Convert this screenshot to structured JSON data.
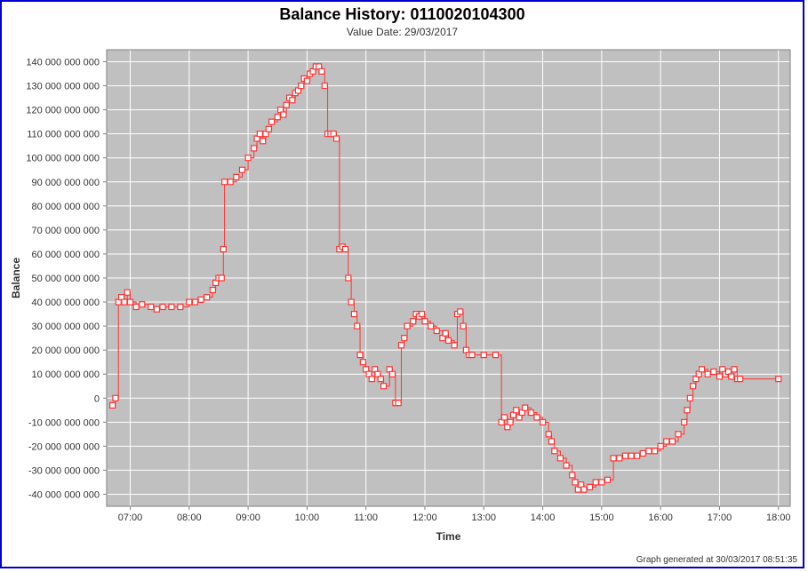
{
  "title": "Balance History: 0110020104300",
  "subtitle": "Value Date: 29/03/2017",
  "footer": "Graph generated at 30/03/2017 08:51:35",
  "chart": {
    "type": "step-line",
    "xlabel": "Time",
    "ylabel": "Balance",
    "outer_bg": "#ffffff",
    "border_color": "#0000cc",
    "plot_bg": "#c0c0c0",
    "grid_color": "#ffffff",
    "axis_color": "#808080",
    "tick_color": "#808080",
    "series_color": "#ff3333",
    "marker_fill": "#ffffff",
    "marker_stroke": "#ff3333",
    "marker_size": 6,
    "line_width": 1.0,
    "tick_font_size": 11,
    "axis_label_font_size": 12,
    "x_ticks": [
      {
        "v": 7,
        "label": "07:00"
      },
      {
        "v": 8,
        "label": "08:00"
      },
      {
        "v": 9,
        "label": "09:00"
      },
      {
        "v": 10,
        "label": "10:00"
      },
      {
        "v": 11,
        "label": "11:00"
      },
      {
        "v": 12,
        "label": "12:00"
      },
      {
        "v": 13,
        "label": "13:00"
      },
      {
        "v": 14,
        "label": "14:00"
      },
      {
        "v": 15,
        "label": "15:00"
      },
      {
        "v": 16,
        "label": "16:00"
      },
      {
        "v": 17,
        "label": "17:00"
      },
      {
        "v": 18,
        "label": "18:00"
      }
    ],
    "y_ticks": [
      {
        "v": -40000000000,
        "label": "-40 000 000 000"
      },
      {
        "v": -30000000000,
        "label": "-30 000 000 000"
      },
      {
        "v": -20000000000,
        "label": "-20 000 000 000"
      },
      {
        "v": -10000000000,
        "label": "-10 000 000 000"
      },
      {
        "v": 0,
        "label": "0"
      },
      {
        "v": 10000000000,
        "label": "10 000 000 000"
      },
      {
        "v": 20000000000,
        "label": "20 000 000 000"
      },
      {
        "v": 30000000000,
        "label": "30 000 000 000"
      },
      {
        "v": 40000000000,
        "label": "40 000 000 000"
      },
      {
        "v": 50000000000,
        "label": "50 000 000 000"
      },
      {
        "v": 60000000000,
        "label": "60 000 000 000"
      },
      {
        "v": 70000000000,
        "label": "70 000 000 000"
      },
      {
        "v": 80000000000,
        "label": "80 000 000 000"
      },
      {
        "v": 90000000000,
        "label": "90 000 000 000"
      },
      {
        "v": 100000000000,
        "label": "100 000 000 000"
      },
      {
        "v": 110000000000,
        "label": "110 000 000 000"
      },
      {
        "v": 120000000000,
        "label": "120 000 000 000"
      },
      {
        "v": 130000000000,
        "label": "130 000 000 000"
      },
      {
        "v": 140000000000,
        "label": "140 000 000 000"
      }
    ],
    "xlim": [
      6.6,
      18.2
    ],
    "ylim": [
      -45000000000,
      145000000000
    ],
    "data": [
      {
        "t": 6.7,
        "v": -3000000000
      },
      {
        "t": 6.75,
        "v": 0
      },
      {
        "t": 6.8,
        "v": 40000000000
      },
      {
        "t": 6.85,
        "v": 42000000000
      },
      {
        "t": 6.9,
        "v": 40000000000
      },
      {
        "t": 6.95,
        "v": 44000000000
      },
      {
        "t": 7.0,
        "v": 40000000000
      },
      {
        "t": 7.1,
        "v": 38000000000
      },
      {
        "t": 7.2,
        "v": 39000000000
      },
      {
        "t": 7.35,
        "v": 38000000000
      },
      {
        "t": 7.45,
        "v": 37000000000
      },
      {
        "t": 7.55,
        "v": 38000000000
      },
      {
        "t": 7.7,
        "v": 38000000000
      },
      {
        "t": 7.85,
        "v": 38000000000
      },
      {
        "t": 8.0,
        "v": 40000000000
      },
      {
        "t": 8.1,
        "v": 40000000000
      },
      {
        "t": 8.2,
        "v": 41000000000
      },
      {
        "t": 8.3,
        "v": 42000000000
      },
      {
        "t": 8.4,
        "v": 45000000000
      },
      {
        "t": 8.45,
        "v": 48000000000
      },
      {
        "t": 8.5,
        "v": 50000000000
      },
      {
        "t": 8.55,
        "v": 50000000000
      },
      {
        "t": 8.58,
        "v": 62000000000
      },
      {
        "t": 8.6,
        "v": 90000000000
      },
      {
        "t": 8.7,
        "v": 90000000000
      },
      {
        "t": 8.8,
        "v": 92000000000
      },
      {
        "t": 8.9,
        "v": 95000000000
      },
      {
        "t": 9.0,
        "v": 100000000000
      },
      {
        "t": 9.1,
        "v": 104000000000
      },
      {
        "t": 9.15,
        "v": 108000000000
      },
      {
        "t": 9.2,
        "v": 110000000000
      },
      {
        "t": 9.25,
        "v": 107000000000
      },
      {
        "t": 9.3,
        "v": 110000000000
      },
      {
        "t": 9.35,
        "v": 112000000000
      },
      {
        "t": 9.4,
        "v": 115000000000
      },
      {
        "t": 9.5,
        "v": 117000000000
      },
      {
        "t": 9.55,
        "v": 120000000000
      },
      {
        "t": 9.6,
        "v": 118000000000
      },
      {
        "t": 9.65,
        "v": 122000000000
      },
      {
        "t": 9.7,
        "v": 125000000000
      },
      {
        "t": 9.75,
        "v": 124000000000
      },
      {
        "t": 9.8,
        "v": 127000000000
      },
      {
        "t": 9.85,
        "v": 128000000000
      },
      {
        "t": 9.9,
        "v": 130000000000
      },
      {
        "t": 9.95,
        "v": 133000000000
      },
      {
        "t": 10.0,
        "v": 132000000000
      },
      {
        "t": 10.05,
        "v": 135000000000
      },
      {
        "t": 10.1,
        "v": 136000000000
      },
      {
        "t": 10.15,
        "v": 138000000000
      },
      {
        "t": 10.2,
        "v": 138000000000
      },
      {
        "t": 10.25,
        "v": 136000000000
      },
      {
        "t": 10.3,
        "v": 130000000000
      },
      {
        "t": 10.35,
        "v": 110000000000
      },
      {
        "t": 10.4,
        "v": 110000000000
      },
      {
        "t": 10.45,
        "v": 110000000000
      },
      {
        "t": 10.5,
        "v": 108000000000
      },
      {
        "t": 10.55,
        "v": 62000000000
      },
      {
        "t": 10.6,
        "v": 63000000000
      },
      {
        "t": 10.65,
        "v": 62000000000
      },
      {
        "t": 10.7,
        "v": 50000000000
      },
      {
        "t": 10.75,
        "v": 40000000000
      },
      {
        "t": 10.8,
        "v": 35000000000
      },
      {
        "t": 10.85,
        "v": 30000000000
      },
      {
        "t": 10.9,
        "v": 18000000000
      },
      {
        "t": 10.95,
        "v": 15000000000
      },
      {
        "t": 11.0,
        "v": 12000000000
      },
      {
        "t": 11.05,
        "v": 10000000000
      },
      {
        "t": 11.1,
        "v": 8000000000
      },
      {
        "t": 11.15,
        "v": 12000000000
      },
      {
        "t": 11.2,
        "v": 10000000000
      },
      {
        "t": 11.25,
        "v": 8000000000
      },
      {
        "t": 11.3,
        "v": 5000000000
      },
      {
        "t": 11.4,
        "v": 12000000000
      },
      {
        "t": 11.45,
        "v": 10000000000
      },
      {
        "t": 11.5,
        "v": -2000000000
      },
      {
        "t": 11.55,
        "v": -2000000000
      },
      {
        "t": 11.6,
        "v": 22000000000
      },
      {
        "t": 11.65,
        "v": 25000000000
      },
      {
        "t": 11.7,
        "v": 30000000000
      },
      {
        "t": 11.8,
        "v": 32000000000
      },
      {
        "t": 11.85,
        "v": 35000000000
      },
      {
        "t": 11.9,
        "v": 34000000000
      },
      {
        "t": 11.95,
        "v": 35000000000
      },
      {
        "t": 12.0,
        "v": 32000000000
      },
      {
        "t": 12.1,
        "v": 30000000000
      },
      {
        "t": 12.2,
        "v": 28000000000
      },
      {
        "t": 12.3,
        "v": 25000000000
      },
      {
        "t": 12.35,
        "v": 27000000000
      },
      {
        "t": 12.4,
        "v": 24000000000
      },
      {
        "t": 12.5,
        "v": 22000000000
      },
      {
        "t": 12.55,
        "v": 35000000000
      },
      {
        "t": 12.6,
        "v": 36000000000
      },
      {
        "t": 12.65,
        "v": 30000000000
      },
      {
        "t": 12.7,
        "v": 20000000000
      },
      {
        "t": 12.75,
        "v": 18000000000
      },
      {
        "t": 12.8,
        "v": 18000000000
      },
      {
        "t": 13.0,
        "v": 18000000000
      },
      {
        "t": 13.2,
        "v": 18000000000
      },
      {
        "t": 13.3,
        "v": -10000000000
      },
      {
        "t": 13.35,
        "v": -8000000000
      },
      {
        "t": 13.4,
        "v": -12000000000
      },
      {
        "t": 13.45,
        "v": -10000000000
      },
      {
        "t": 13.5,
        "v": -7000000000
      },
      {
        "t": 13.55,
        "v": -5000000000
      },
      {
        "t": 13.6,
        "v": -8000000000
      },
      {
        "t": 13.65,
        "v": -6000000000
      },
      {
        "t": 13.7,
        "v": -4000000000
      },
      {
        "t": 13.8,
        "v": -6000000000
      },
      {
        "t": 13.9,
        "v": -8000000000
      },
      {
        "t": 14.0,
        "v": -10000000000
      },
      {
        "t": 14.1,
        "v": -15000000000
      },
      {
        "t": 14.15,
        "v": -18000000000
      },
      {
        "t": 14.2,
        "v": -22000000000
      },
      {
        "t": 14.3,
        "v": -25000000000
      },
      {
        "t": 14.4,
        "v": -28000000000
      },
      {
        "t": 14.5,
        "v": -32000000000
      },
      {
        "t": 14.55,
        "v": -35000000000
      },
      {
        "t": 14.6,
        "v": -38000000000
      },
      {
        "t": 14.65,
        "v": -36000000000
      },
      {
        "t": 14.7,
        "v": -38000000000
      },
      {
        "t": 14.8,
        "v": -37000000000
      },
      {
        "t": 14.9,
        "v": -35000000000
      },
      {
        "t": 15.0,
        "v": -35000000000
      },
      {
        "t": 15.1,
        "v": -34000000000
      },
      {
        "t": 15.2,
        "v": -25000000000
      },
      {
        "t": 15.3,
        "v": -25000000000
      },
      {
        "t": 15.4,
        "v": -24000000000
      },
      {
        "t": 15.5,
        "v": -24000000000
      },
      {
        "t": 15.6,
        "v": -24000000000
      },
      {
        "t": 15.7,
        "v": -23000000000
      },
      {
        "t": 15.8,
        "v": -22000000000
      },
      {
        "t": 15.9,
        "v": -22000000000
      },
      {
        "t": 16.0,
        "v": -20000000000
      },
      {
        "t": 16.1,
        "v": -18000000000
      },
      {
        "t": 16.2,
        "v": -18000000000
      },
      {
        "t": 16.3,
        "v": -15000000000
      },
      {
        "t": 16.4,
        "v": -10000000000
      },
      {
        "t": 16.45,
        "v": -5000000000
      },
      {
        "t": 16.5,
        "v": 0
      },
      {
        "t": 16.55,
        "v": 5000000000
      },
      {
        "t": 16.6,
        "v": 8000000000
      },
      {
        "t": 16.65,
        "v": 10000000000
      },
      {
        "t": 16.7,
        "v": 12000000000
      },
      {
        "t": 16.8,
        "v": 10000000000
      },
      {
        "t": 16.9,
        "v": 11000000000
      },
      {
        "t": 17.0,
        "v": 9000000000
      },
      {
        "t": 17.05,
        "v": 12000000000
      },
      {
        "t": 17.1,
        "v": 10000000000
      },
      {
        "t": 17.15,
        "v": 11000000000
      },
      {
        "t": 17.2,
        "v": 9000000000
      },
      {
        "t": 17.25,
        "v": 12000000000
      },
      {
        "t": 17.3,
        "v": 8000000000
      },
      {
        "t": 17.35,
        "v": 8000000000
      },
      {
        "t": 18.0,
        "v": 8000000000
      }
    ]
  }
}
